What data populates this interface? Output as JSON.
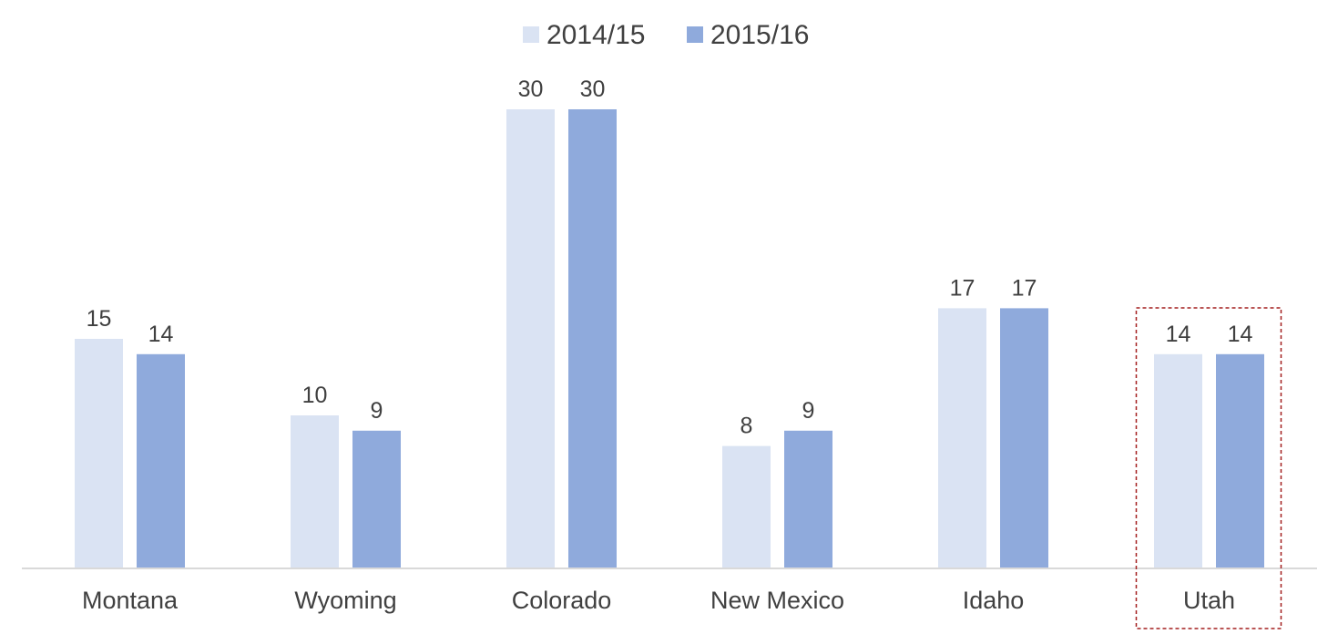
{
  "chart_data": {
    "type": "bar",
    "categories": [
      "Montana",
      "Wyoming",
      "Colorado",
      "New Mexico",
      "Idaho",
      "Utah"
    ],
    "series": [
      {
        "name": "2014/15",
        "values": [
          15,
          10,
          30,
          8,
          17,
          14
        ],
        "color": "#dae3f3"
      },
      {
        "name": "2015/16",
        "values": [
          14,
          9,
          30,
          9,
          17,
          14
        ],
        "color": "#8faadc"
      }
    ],
    "ylim": [
      0,
      30
    ],
    "grid": false,
    "legend_position": "top-center",
    "highlighted_category": "Utah",
    "highlight_color": "#a31f1f",
    "axis_color": "#d9d9d9",
    "text_color": "#404040"
  }
}
